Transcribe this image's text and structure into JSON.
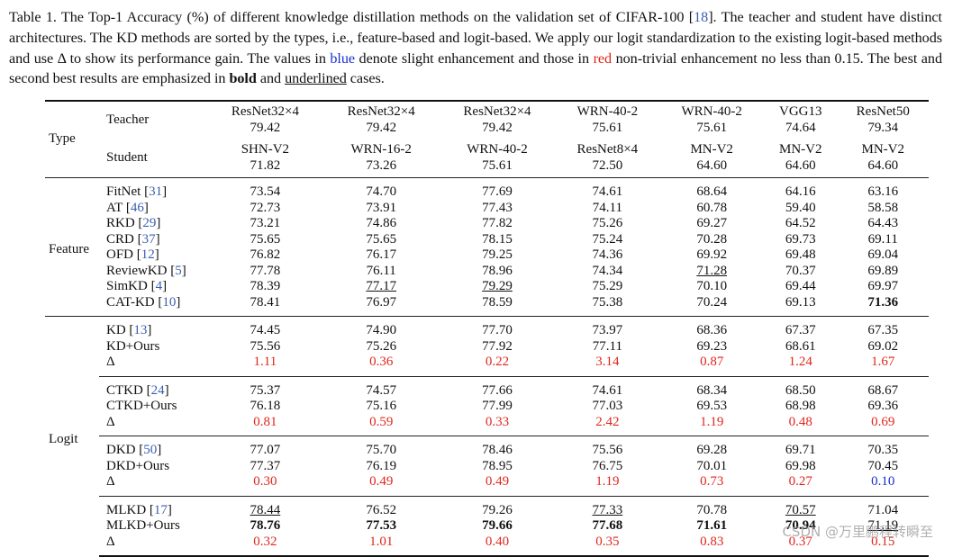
{
  "caption": {
    "t1": "Table 1.  The Top-1 Accuracy (%) of different knowledge distillation methods on the validation set of CIFAR-100 [",
    "ref": "18",
    "t2": "].  The teacher and student have distinct architectures. The KD methods are sorted by the types, i.e., feature-based and logit-based.  We apply our logit standardization to the existing logit-based methods and use Δ to show its performance gain. The values in ",
    "blue": "blue",
    "t3": " denote slight enhancement and those in ",
    "red": "red",
    "t4": " non-trivial enhancement no less than 0.15. The best and second best results are emphasized in ",
    "bold": "bold",
    "t5": " and ",
    "underlined": "underlined",
    "t6": " cases."
  },
  "header": {
    "type": "Type",
    "teacher": "Teacher",
    "student": "Student",
    "cols": [
      {
        "t": "ResNet32×4",
        "ta": "79.42",
        "s": "SHN-V2",
        "sa": "71.82"
      },
      {
        "t": "ResNet32×4",
        "ta": "79.42",
        "s": "WRN-16-2",
        "sa": "73.26"
      },
      {
        "t": "ResNet32×4",
        "ta": "79.42",
        "s": "WRN-40-2",
        "sa": "75.61"
      },
      {
        "t": "WRN-40-2",
        "ta": "75.61",
        "s": "ResNet8×4",
        "sa": "72.50"
      },
      {
        "t": "WRN-40-2",
        "ta": "75.61",
        "s": "MN-V2",
        "sa": "64.60"
      },
      {
        "t": "VGG13",
        "ta": "74.64",
        "s": "MN-V2",
        "sa": "64.60"
      },
      {
        "t": "ResNet50",
        "ta": "79.34",
        "s": "MN-V2",
        "sa": "64.60"
      }
    ]
  },
  "feature": {
    "label": "Feature",
    "rows": [
      {
        "name": "FitNet",
        "ref": "31",
        "v": [
          "73.54",
          "74.70",
          "77.69",
          "74.61",
          "68.64",
          "64.16",
          "63.16"
        ]
      },
      {
        "name": "AT",
        "ref": "46",
        "v": [
          "72.73",
          "73.91",
          "77.43",
          "74.11",
          "60.78",
          "59.40",
          "58.58"
        ]
      },
      {
        "name": "RKD",
        "ref": "29",
        "v": [
          "73.21",
          "74.86",
          "77.82",
          "75.26",
          "69.27",
          "64.52",
          "64.43"
        ]
      },
      {
        "name": "CRD",
        "ref": "37",
        "v": [
          "75.65",
          "75.65",
          "78.15",
          "75.24",
          "70.28",
          "69.73",
          "69.11"
        ]
      },
      {
        "name": "OFD",
        "ref": "12",
        "v": [
          "76.82",
          "76.17",
          "79.25",
          "74.36",
          "69.92",
          "69.48",
          "69.04"
        ]
      },
      {
        "name": "ReviewKD",
        "ref": "5",
        "v": [
          "77.78",
          "76.11",
          "78.96",
          "74.34",
          "71.28",
          "70.37",
          "69.89"
        ]
      },
      {
        "name": "SimKD",
        "ref": "4",
        "v": [
          "78.39",
          "77.17",
          "79.29",
          "75.29",
          "70.10",
          "69.44",
          "69.97"
        ]
      },
      {
        "name": "CAT-KD",
        "ref": "10",
        "v": [
          "78.41",
          "76.97",
          "78.59",
          "75.38",
          "70.24",
          "69.13",
          "71.36"
        ]
      }
    ]
  },
  "logit": {
    "label": "Logit",
    "groups": [
      {
        "base": "KD",
        "ref": "13",
        "ours": "KD+Ours",
        "delta": "Δ",
        "bv": [
          "74.45",
          "74.90",
          "77.70",
          "73.97",
          "68.36",
          "67.37",
          "67.35"
        ],
        "ov": [
          "75.56",
          "75.26",
          "77.92",
          "77.11",
          "69.23",
          "68.61",
          "69.02"
        ],
        "dv": [
          "1.11",
          "0.36",
          "0.22",
          "3.14",
          "0.87",
          "1.24",
          "1.67"
        ]
      },
      {
        "base": "CTKD",
        "ref": "24",
        "ours": "CTKD+Ours",
        "delta": "Δ",
        "bv": [
          "75.37",
          "74.57",
          "77.66",
          "74.61",
          "68.34",
          "68.50",
          "68.67"
        ],
        "ov": [
          "76.18",
          "75.16",
          "77.99",
          "77.03",
          "69.53",
          "68.98",
          "69.36"
        ],
        "dv": [
          "0.81",
          "0.59",
          "0.33",
          "2.42",
          "1.19",
          "0.48",
          "0.69"
        ]
      },
      {
        "base": "DKD",
        "ref": "50",
        "ours": "DKD+Ours",
        "delta": "Δ",
        "bv": [
          "77.07",
          "75.70",
          "78.46",
          "75.56",
          "69.28",
          "69.71",
          "70.35"
        ],
        "ov": [
          "77.37",
          "76.19",
          "78.95",
          "76.75",
          "70.01",
          "69.98",
          "70.45"
        ],
        "dv": [
          "0.30",
          "0.49",
          "0.49",
          "1.19",
          "0.73",
          "0.27",
          "0.10"
        ]
      },
      {
        "base": "MLKD",
        "ref": "17",
        "ours": "MLKD+Ours",
        "delta": "Δ",
        "bv": [
          "78.44",
          "76.52",
          "79.26",
          "77.33",
          "70.78",
          "70.57",
          "71.04"
        ],
        "ov": [
          "78.76",
          "77.53",
          "79.66",
          "77.68",
          "71.61",
          "70.94",
          "71.19"
        ],
        "dv": [
          "0.32",
          "1.01",
          "0.40",
          "0.35",
          "0.83",
          "0.37",
          "0.15"
        ]
      }
    ]
  },
  "watermark": "CSDN @万里鹏程转瞬至"
}
